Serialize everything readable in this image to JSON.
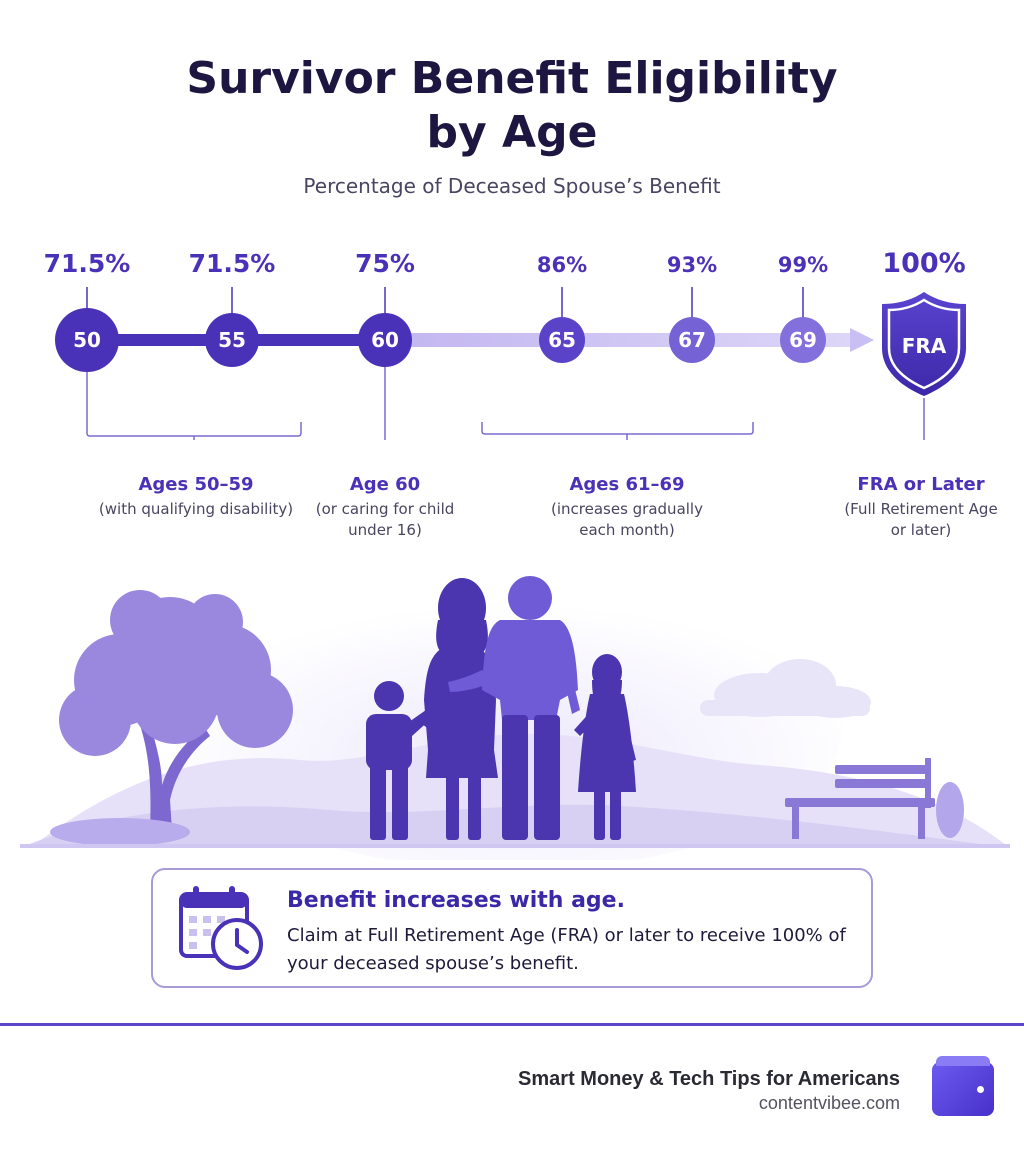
{
  "header": {
    "title_line1": "Survivor Benefit Eligibility",
    "title_line2": "by Age",
    "subtitle": "Percentage of Deceased Spouse’s Benefit"
  },
  "chart_data": {
    "type": "timeline",
    "x": [
      "50",
      "55",
      "60",
      "65",
      "67",
      "69",
      "FRA"
    ],
    "values": [
      71.5,
      71.5,
      75,
      86,
      93,
      99,
      100
    ],
    "value_labels": [
      "71.5%",
      "71.5%",
      "75%",
      "86%",
      "93%",
      "99%",
      "100%"
    ],
    "unit": "%"
  },
  "groups": [
    {
      "title": "Ages 50–59",
      "line1": "(with qualifying disability)",
      "line2": ""
    },
    {
      "title": "Age 60",
      "line1": "(or caring for child",
      "line2": "under 16)"
    },
    {
      "title": "Ages 61–69",
      "line1": "(increases gradually",
      "line2": "each month)"
    },
    {
      "title": "FRA or Later",
      "line1": "(Full Retirement Age",
      "line2": "or later)"
    }
  ],
  "callout": {
    "heading": "Benefit increases with age.",
    "body": "Claim at Full Retirement Age (FRA) or later to receive 100% of your deceased spouse’s benefit.",
    "icon": "calendar-clock-icon"
  },
  "footer": {
    "brand": "Smart Money & Tech Tips for Americans",
    "url": "contentvibee.com",
    "icon": "wallet-icon"
  },
  "colors": {
    "primary": "#4a32b8",
    "accent": "#5b45c8",
    "light": "#c9c0ef",
    "silhouette": "#4b36b0"
  }
}
